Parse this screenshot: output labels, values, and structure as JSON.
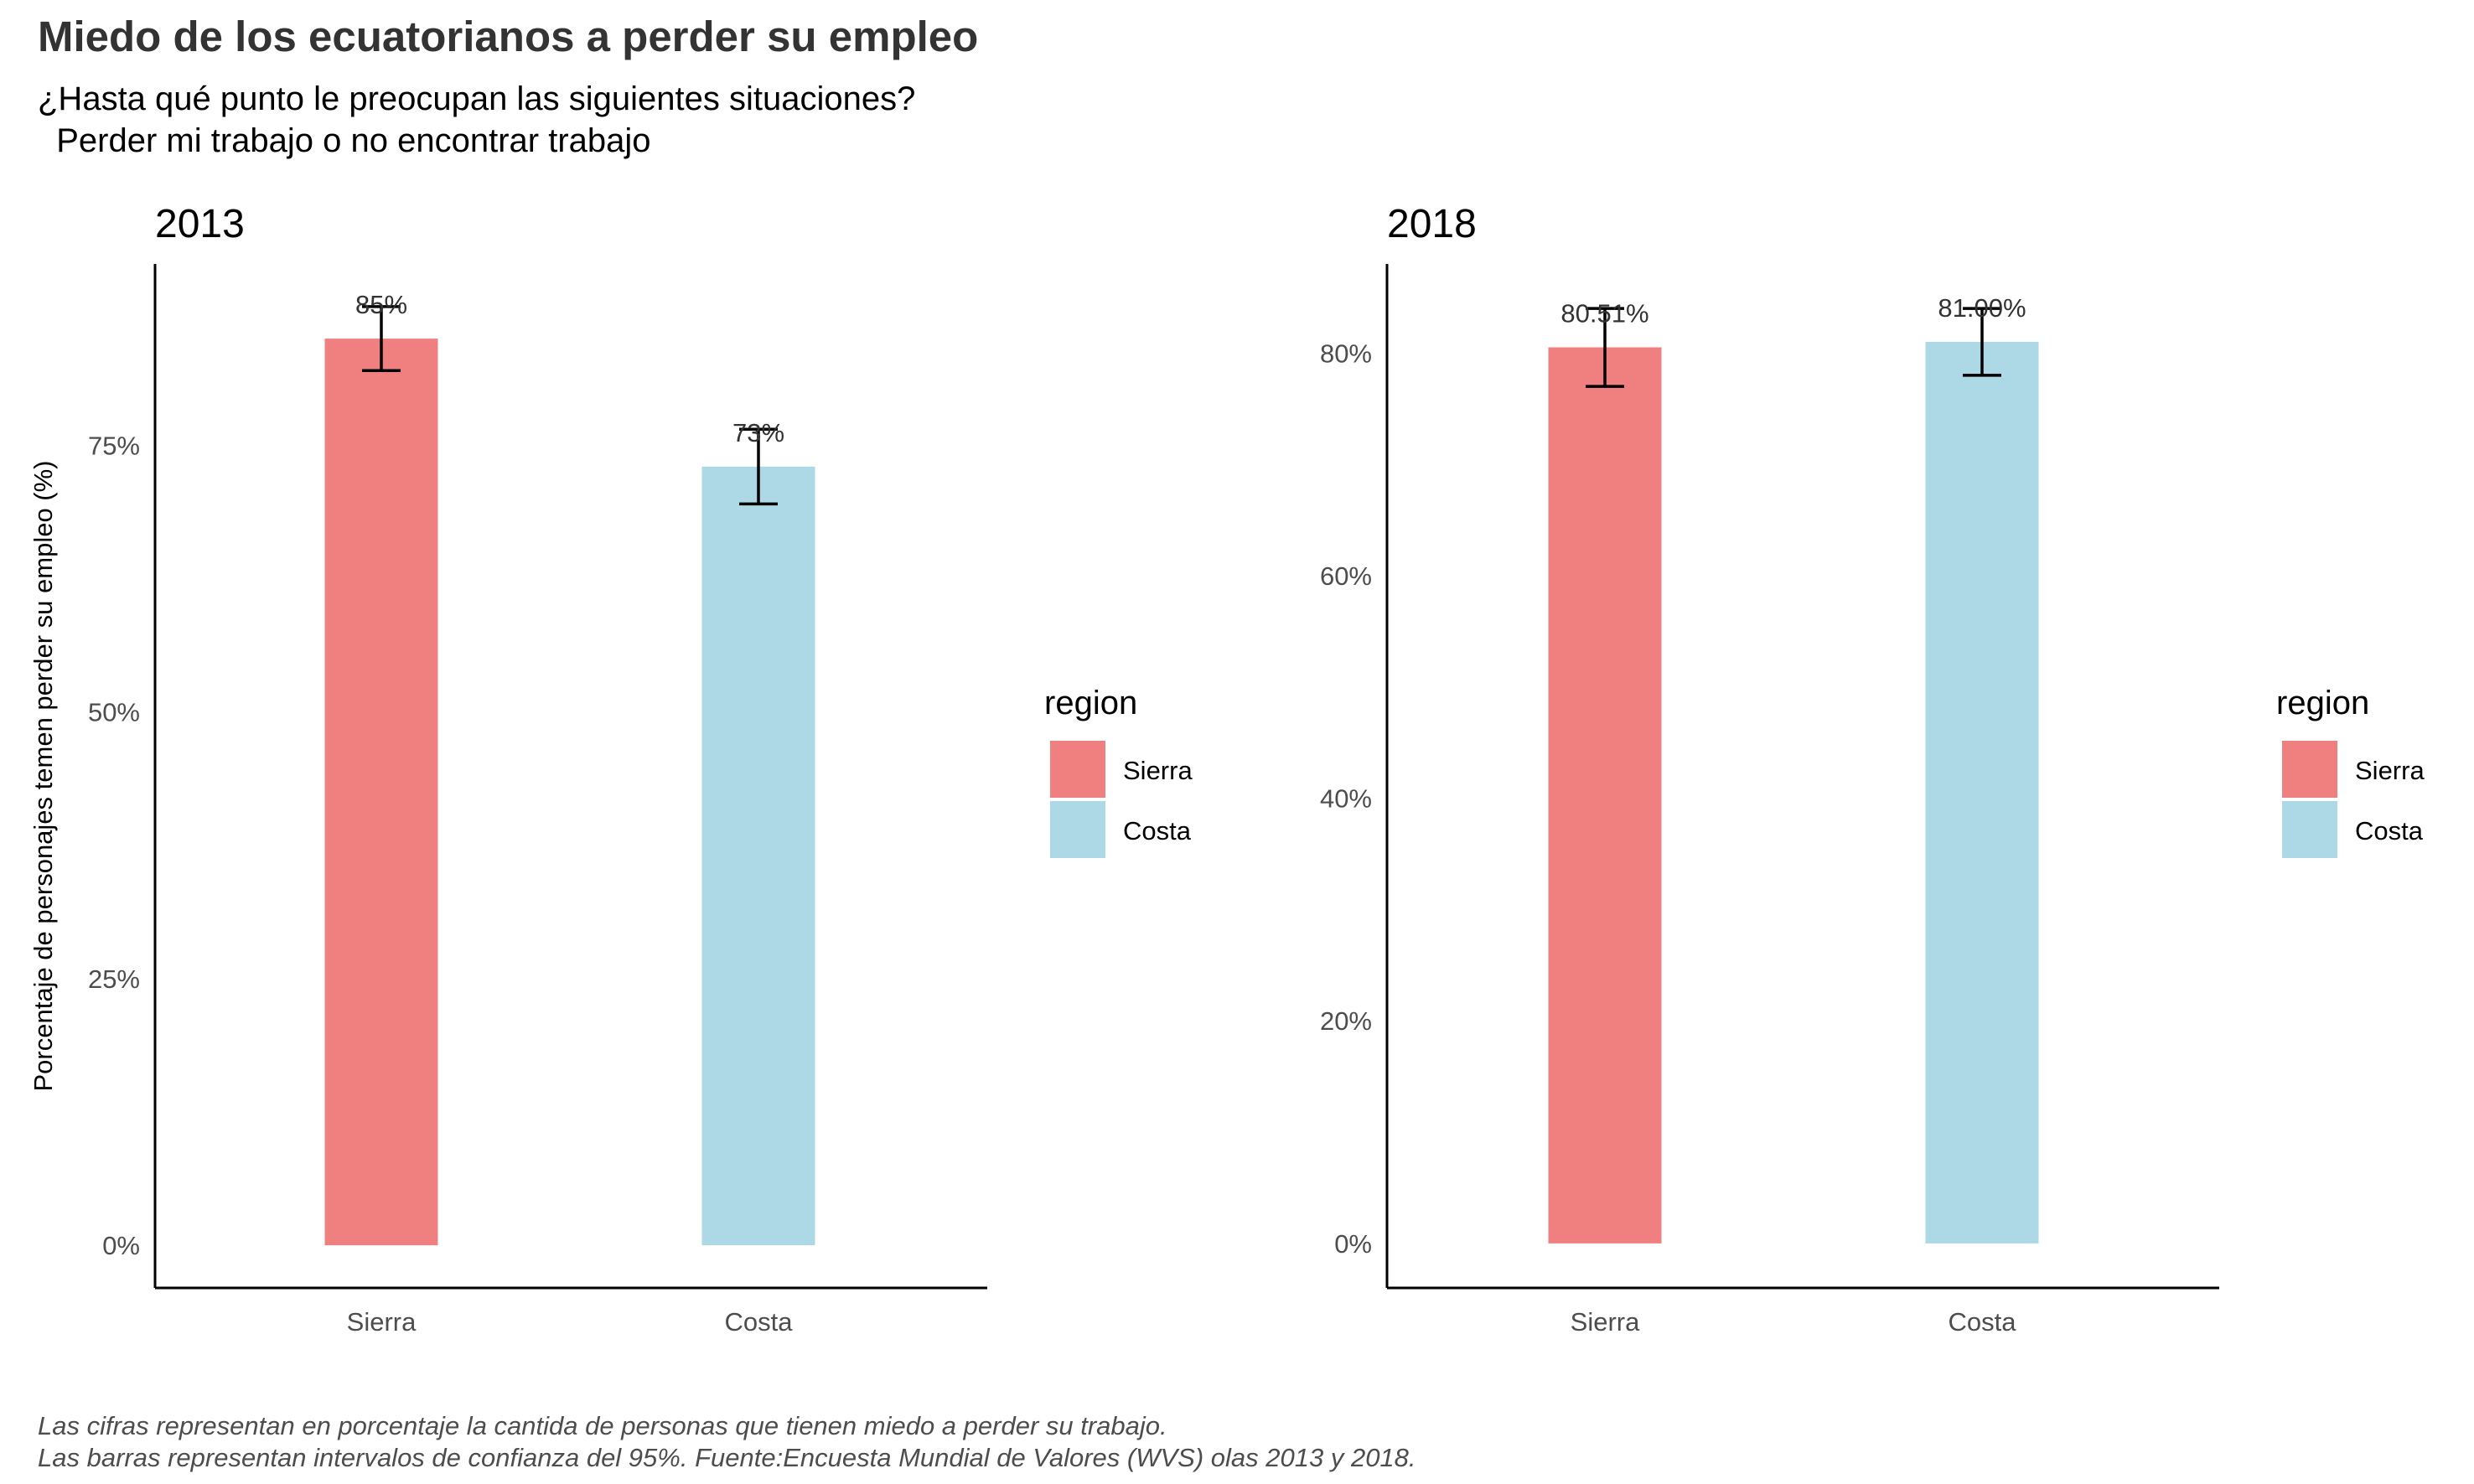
{
  "title": "Miedo de los ecuatorianos a perder su empleo",
  "subtitle": "¿Hasta qué punto le preocupan las siguientes situaciones?\n  Perder mi trabajo o no encontrar trabajo",
  "caption": "Las cifras representan en porcentaje la cantida de personas que tienen miedo a perder su trabajo.\nLas barras representan intervalos de confianza del 95%. Fuente:Encuesta Mundial de Valores (WVS) olas 2013 y 2018.",
  "chart_data": [
    {
      "type": "bar",
      "title": "2013",
      "ylabel": "Porcentaje de personajes temen perder su empleo (%)",
      "xlabel": "",
      "categories": [
        "Sierra",
        "Costa"
      ],
      "values": [
        85,
        73
      ],
      "ci_low": [
        82,
        69.5
      ],
      "ci_high": [
        88,
        76.5
      ],
      "data_labels": [
        "85%",
        "73%"
      ],
      "ylim": [
        -4,
        92
      ],
      "yticks": [
        0,
        25,
        50,
        75
      ],
      "ytick_labels": [
        "0%",
        "25%",
        "50%",
        "75%"
      ],
      "colors": [
        "#F08080",
        "#ADD8E6"
      ],
      "legend": {
        "title": "region",
        "entries": [
          "Sierra",
          "Costa"
        ],
        "position": "right"
      },
      "grid": false
    },
    {
      "type": "bar",
      "title": "2018",
      "ylabel": "",
      "xlabel": "",
      "categories": [
        "Sierra",
        "Costa"
      ],
      "values": [
        80.51,
        81.0
      ],
      "ci_low": [
        77.0,
        78.0
      ],
      "ci_high": [
        84.0,
        84.0
      ],
      "data_labels": [
        "80.51%",
        "81.00%"
      ],
      "ylim": [
        -4,
        88
      ],
      "yticks": [
        0,
        20,
        40,
        60,
        80
      ],
      "ytick_labels": [
        "0%",
        "20%",
        "40%",
        "60%",
        "80%"
      ],
      "colors": [
        "#F08080",
        "#ADD8E6"
      ],
      "legend": {
        "title": "region",
        "entries": [
          "Sierra",
          "Costa"
        ],
        "position": "right"
      },
      "grid": false
    }
  ]
}
